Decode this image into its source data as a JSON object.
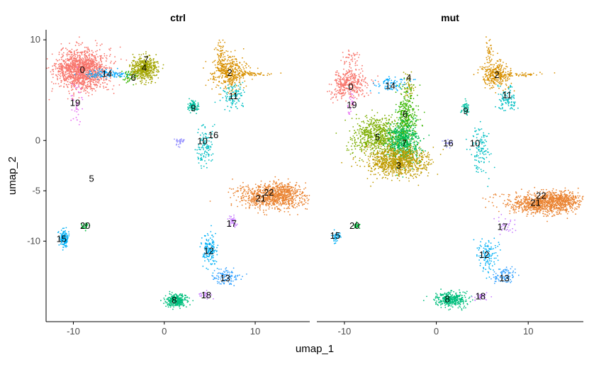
{
  "chart_data": {
    "type": "scatter",
    "xlabel": "umap_1",
    "ylabel": "umap_2",
    "xlim": [
      -13,
      16
    ],
    "ylim": [
      -18,
      11
    ],
    "x_ticks": [
      -10,
      0,
      10
    ],
    "y_ticks": [
      10,
      0,
      -5,
      -10
    ],
    "x_tick_labels": [
      "-10",
      "0",
      "10"
    ],
    "y_tick_labels": [
      "10",
      "0",
      "-5",
      "-10"
    ],
    "grid": false,
    "facets": [
      "ctrl",
      "mut"
    ],
    "palette": {
      "0": "#F8766D",
      "1": "#EA8331",
      "2": "#D89000",
      "3": "#C09B00",
      "4": "#A3A500",
      "5": "#7CAE00",
      "6": "#39B600",
      "7": "#00BB4E",
      "8": "#00BF7D",
      "9": "#00C1A3",
      "10": "#00BFC4",
      "11": "#00BAE0",
      "12": "#00B0F6",
      "13": "#35A2FF",
      "14": "#00A9FF",
      "15": "#5C9EFF",
      "16": "#9590FF",
      "17": "#C77CFF",
      "18": "#E76BF3",
      "19": "#E76BF3",
      "20": "#00BA38",
      "21": "#F8766D",
      "22": "#EA8331"
    },
    "panels": [
      {
        "name": "ctrl",
        "labels": [
          {
            "text": "0",
            "x": -9.0,
            "y": 7.0
          },
          {
            "text": "14",
            "x": -6.3,
            "y": 6.6
          },
          {
            "text": "6",
            "x": -3.4,
            "y": 6.2
          },
          {
            "text": "4",
            "x": -2.2,
            "y": 7.2
          },
          {
            "text": "7",
            "x": -2.0,
            "y": 8.0
          },
          {
            "text": "19",
            "x": -9.8,
            "y": 3.7
          },
          {
            "text": "2",
            "x": 7.2,
            "y": 6.7
          },
          {
            "text": "11",
            "x": 7.6,
            "y": 4.4
          },
          {
            "text": "9",
            "x": 3.2,
            "y": 3.2
          },
          {
            "text": "16",
            "x": 5.4,
            "y": 0.5
          },
          {
            "text": "10",
            "x": 4.2,
            "y": -0.1
          },
          {
            "text": "5",
            "x": -8.0,
            "y": -3.8
          },
          {
            "text": "22",
            "x": 11.5,
            "y": -5.2
          },
          {
            "text": "21",
            "x": 10.6,
            "y": -5.8
          },
          {
            "text": "20",
            "x": -8.7,
            "y": -8.5
          },
          {
            "text": "17",
            "x": 7.4,
            "y": -8.3
          },
          {
            "text": "15",
            "x": -11.3,
            "y": -9.8
          },
          {
            "text": "12",
            "x": 4.9,
            "y": -11.0
          },
          {
            "text": "13",
            "x": 6.7,
            "y": -13.7
          },
          {
            "text": "8",
            "x": 1.1,
            "y": -15.9
          },
          {
            "text": "18",
            "x": 4.6,
            "y": -15.4
          }
        ]
      },
      {
        "name": "mut",
        "labels": [
          {
            "text": "0",
            "x": -9.3,
            "y": 5.3
          },
          {
            "text": "14",
            "x": -5.0,
            "y": 5.4
          },
          {
            "text": "4",
            "x": -3.0,
            "y": 6.2
          },
          {
            "text": "19",
            "x": -9.2,
            "y": 3.5
          },
          {
            "text": "6",
            "x": -3.4,
            "y": 2.6
          },
          {
            "text": "5",
            "x": -6.4,
            "y": 0.3
          },
          {
            "text": "7",
            "x": -3.5,
            "y": -0.3
          },
          {
            "text": "3",
            "x": -4.1,
            "y": -2.5
          },
          {
            "text": "2",
            "x": 6.6,
            "y": 6.5
          },
          {
            "text": "11",
            "x": 7.7,
            "y": 4.5
          },
          {
            "text": "9",
            "x": 3.2,
            "y": 2.9
          },
          {
            "text": "16",
            "x": 1.3,
            "y": -0.3
          },
          {
            "text": "10",
            "x": 4.2,
            "y": -0.3
          },
          {
            "text": "22",
            "x": 11.4,
            "y": -5.5
          },
          {
            "text": "21",
            "x": 10.8,
            "y": -6.2
          },
          {
            "text": "20",
            "x": -8.9,
            "y": -8.5
          },
          {
            "text": "17",
            "x": 7.2,
            "y": -8.6
          },
          {
            "text": "15",
            "x": -11.0,
            "y": -9.5
          },
          {
            "text": "12",
            "x": 5.2,
            "y": -11.4
          },
          {
            "text": "13",
            "x": 7.4,
            "y": -13.7
          },
          {
            "text": "8",
            "x": 1.2,
            "y": -15.8
          },
          {
            "text": "18",
            "x": 4.8,
            "y": -15.5
          }
        ]
      }
    ],
    "clusters": [
      {
        "panel": "ctrl",
        "id": "0",
        "color": "#F8766D",
        "cx": -9.0,
        "cy": 7.0,
        "sx": 1.4,
        "sy": 1.0,
        "n": 1400
      },
      {
        "panel": "ctrl",
        "id": "14",
        "color": "#00A9FF",
        "cx": -6.3,
        "cy": 6.6,
        "sx": 1.2,
        "sy": 0.2,
        "n": 120
      },
      {
        "panel": "ctrl",
        "id": "6",
        "color": "#39B600",
        "cx": -3.7,
        "cy": 6.3,
        "sx": 0.5,
        "sy": 0.3,
        "n": 50
      },
      {
        "panel": "ctrl",
        "id": "4",
        "color": "#A3A500",
        "cx": -2.2,
        "cy": 7.2,
        "sx": 0.7,
        "sy": 0.6,
        "n": 500
      },
      {
        "panel": "ctrl",
        "id": "19",
        "color": "#E76BF3",
        "cx": -9.6,
        "cy": 3.7,
        "sx": 0.3,
        "sy": 1.2,
        "n": 40
      },
      {
        "panel": "ctrl",
        "id": "2",
        "color": "#D89000",
        "cx": 7.2,
        "cy": 6.8,
        "sx": 0.9,
        "sy": 0.9,
        "n": 400
      },
      {
        "panel": "ctrl",
        "id": "2a",
        "color": "#D89000",
        "cx": 9.5,
        "cy": 6.6,
        "sx": 1.2,
        "sy": 0.1,
        "n": 60
      },
      {
        "panel": "ctrl",
        "id": "2b",
        "color": "#D89000",
        "cx": 6.2,
        "cy": 8.6,
        "sx": 0.2,
        "sy": 0.8,
        "n": 50
      },
      {
        "panel": "ctrl",
        "id": "11",
        "color": "#00BFC4",
        "cx": 7.6,
        "cy": 4.3,
        "sx": 0.6,
        "sy": 0.6,
        "n": 100
      },
      {
        "panel": "ctrl",
        "id": "9",
        "color": "#00C1A3",
        "cx": 3.1,
        "cy": 3.4,
        "sx": 0.3,
        "sy": 0.3,
        "n": 90
      },
      {
        "panel": "ctrl",
        "id": "16",
        "color": "#9590FF",
        "cx": 1.8,
        "cy": -0.1,
        "sx": 0.3,
        "sy": 0.2,
        "n": 30
      },
      {
        "panel": "ctrl",
        "id": "10",
        "color": "#00BFC4",
        "cx": 4.5,
        "cy": -0.8,
        "sx": 0.5,
        "sy": 1.2,
        "n": 120
      },
      {
        "panel": "ctrl",
        "id": "21",
        "color": "#EA8331",
        "cx": 11.6,
        "cy": -5.6,
        "sx": 1.8,
        "sy": 0.6,
        "n": 700
      },
      {
        "panel": "ctrl",
        "id": "22",
        "color": "#EA8331",
        "cx": 13.2,
        "cy": -5.2,
        "sx": 1.0,
        "sy": 0.6,
        "n": 250
      },
      {
        "panel": "ctrl",
        "id": "17",
        "color": "#C77CFF",
        "cx": 7.5,
        "cy": -8.1,
        "sx": 0.3,
        "sy": 0.3,
        "n": 40
      },
      {
        "panel": "ctrl",
        "id": "20",
        "color": "#00BA38",
        "cx": -8.7,
        "cy": -8.5,
        "sx": 0.25,
        "sy": 0.2,
        "n": 30
      },
      {
        "panel": "ctrl",
        "id": "15",
        "color": "#00B0F6",
        "cx": -11.0,
        "cy": -9.8,
        "sx": 0.25,
        "sy": 0.4,
        "n": 150
      },
      {
        "panel": "ctrl",
        "id": "12",
        "color": "#00B0F6",
        "cx": 5.0,
        "cy": -11.0,
        "sx": 0.4,
        "sy": 0.8,
        "n": 150
      },
      {
        "panel": "ctrl",
        "id": "13",
        "color": "#35A2FF",
        "cx": 6.8,
        "cy": -13.5,
        "sx": 0.8,
        "sy": 0.4,
        "n": 100
      },
      {
        "panel": "ctrl",
        "id": "8",
        "color": "#00BF7D",
        "cx": 1.3,
        "cy": -15.9,
        "sx": 0.6,
        "sy": 0.3,
        "n": 300
      },
      {
        "panel": "ctrl",
        "id": "18",
        "color": "#C77CFF",
        "cx": 4.5,
        "cy": -15.4,
        "sx": 0.4,
        "sy": 0.2,
        "n": 30
      },
      {
        "panel": "mut",
        "id": "0",
        "color": "#F8766D",
        "cx": -9.5,
        "cy": 5.6,
        "sx": 1.0,
        "sy": 0.7,
        "n": 350
      },
      {
        "panel": "mut",
        "id": "0a",
        "color": "#F8766D",
        "cx": -9.3,
        "cy": 7.7,
        "sx": 0.5,
        "sy": 0.8,
        "n": 60
      },
      {
        "panel": "mut",
        "id": "14",
        "color": "#00A9FF",
        "cx": -5.0,
        "cy": 5.6,
        "sx": 0.9,
        "sy": 0.4,
        "n": 80
      },
      {
        "panel": "mut",
        "id": "4",
        "color": "#A3A500",
        "cx": -3.0,
        "cy": 5.3,
        "sx": 0.3,
        "sy": 0.7,
        "n": 60
      },
      {
        "panel": "mut",
        "id": "19",
        "color": "#E76BF3",
        "cx": -9.3,
        "cy": 3.5,
        "sx": 0.2,
        "sy": 0.6,
        "n": 25
      },
      {
        "panel": "mut",
        "id": "6",
        "color": "#39B600",
        "cx": -3.3,
        "cy": 2.5,
        "sx": 0.6,
        "sy": 1.2,
        "n": 300
      },
      {
        "panel": "mut",
        "id": "5",
        "color": "#7CAE00",
        "cx": -6.3,
        "cy": 0.4,
        "sx": 1.4,
        "sy": 0.9,
        "n": 700
      },
      {
        "panel": "mut",
        "id": "7",
        "color": "#00BB4E",
        "cx": -3.6,
        "cy": -0.2,
        "sx": 0.9,
        "sy": 1.0,
        "n": 600
      },
      {
        "panel": "mut",
        "id": "3",
        "color": "#C09B00",
        "cx": -4.3,
        "cy": -2.1,
        "sx": 1.6,
        "sy": 0.7,
        "n": 900
      },
      {
        "panel": "mut",
        "id": "2",
        "color": "#D89000",
        "cx": 6.5,
        "cy": 6.6,
        "sx": 0.7,
        "sy": 0.7,
        "n": 300
      },
      {
        "panel": "mut",
        "id": "2a",
        "color": "#D89000",
        "cx": 9.0,
        "cy": 6.5,
        "sx": 1.2,
        "sy": 0.1,
        "n": 50
      },
      {
        "panel": "mut",
        "id": "2b",
        "color": "#D89000",
        "cx": 5.8,
        "cy": 8.7,
        "sx": 0.2,
        "sy": 0.7,
        "n": 40
      },
      {
        "panel": "mut",
        "id": "11",
        "color": "#00BFC4",
        "cx": 7.8,
        "cy": 4.2,
        "sx": 0.6,
        "sy": 0.6,
        "n": 100
      },
      {
        "panel": "mut",
        "id": "9",
        "color": "#00C1A3",
        "cx": 3.2,
        "cy": 3.2,
        "sx": 0.2,
        "sy": 0.4,
        "n": 50
      },
      {
        "panel": "mut",
        "id": "16",
        "color": "#9590FF",
        "cx": 1.5,
        "cy": -0.3,
        "sx": 0.3,
        "sy": 0.2,
        "n": 20
      },
      {
        "panel": "mut",
        "id": "10",
        "color": "#00BFC4",
        "cx": 4.8,
        "cy": -0.9,
        "sx": 0.5,
        "sy": 1.2,
        "n": 120
      },
      {
        "panel": "mut",
        "id": "21",
        "color": "#EA8331",
        "cx": 11.5,
        "cy": -6.3,
        "sx": 2.0,
        "sy": 0.5,
        "n": 800
      },
      {
        "panel": "mut",
        "id": "22",
        "color": "#EA8331",
        "cx": 13.5,
        "cy": -5.8,
        "sx": 1.2,
        "sy": 0.4,
        "n": 300
      },
      {
        "panel": "mut",
        "id": "17",
        "color": "#C77CFF",
        "cx": 7.6,
        "cy": -8.3,
        "sx": 0.6,
        "sy": 0.5,
        "n": 30
      },
      {
        "panel": "mut",
        "id": "20",
        "color": "#00BA38",
        "cx": -8.7,
        "cy": -8.4,
        "sx": 0.2,
        "sy": 0.2,
        "n": 20
      },
      {
        "panel": "mut",
        "id": "15",
        "color": "#00B0F6",
        "cx": -10.8,
        "cy": -9.6,
        "sx": 0.3,
        "sy": 0.3,
        "n": 40
      },
      {
        "panel": "mut",
        "id": "12",
        "color": "#00B0F6",
        "cx": 5.6,
        "cy": -11.4,
        "sx": 0.5,
        "sy": 0.8,
        "n": 120
      },
      {
        "panel": "mut",
        "id": "13",
        "color": "#35A2FF",
        "cx": 7.5,
        "cy": -13.4,
        "sx": 0.6,
        "sy": 0.4,
        "n": 90
      },
      {
        "panel": "mut",
        "id": "8",
        "color": "#00BF7D",
        "cx": 1.6,
        "cy": -15.8,
        "sx": 0.9,
        "sy": 0.35,
        "n": 350
      },
      {
        "panel": "mut",
        "id": "18",
        "color": "#C77CFF",
        "cx": 4.8,
        "cy": -15.5,
        "sx": 0.4,
        "sy": 0.2,
        "n": 30
      }
    ]
  }
}
